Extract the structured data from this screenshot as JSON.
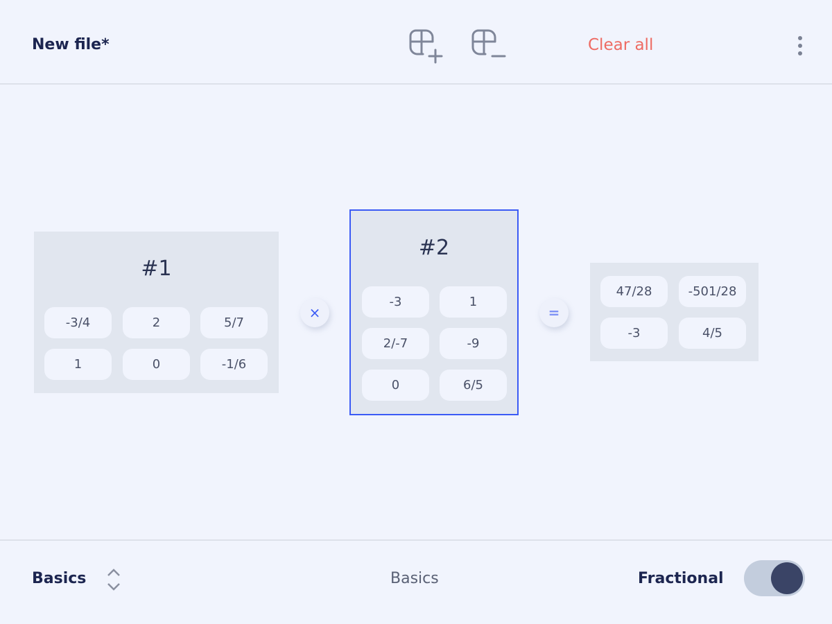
{
  "header": {
    "title": "New file*",
    "add_matrix_icon": "grid-plus-icon",
    "remove_matrix_icon": "grid-minus-icon",
    "clear_all": "Clear all",
    "menu_icon": "more-vertical-icon"
  },
  "matrices": [
    {
      "label": "#1",
      "rows": [
        [
          "-3/4",
          "2",
          "5/7"
        ],
        [
          "1",
          "0",
          "-1/6"
        ]
      ],
      "selected": false
    },
    {
      "label": "#2",
      "rows": [
        [
          "-3",
          "1"
        ],
        [
          "2/-7",
          "-9"
        ],
        [
          "0",
          "6/5"
        ]
      ],
      "selected": true
    }
  ],
  "operator": "×",
  "equals": "=",
  "result": {
    "rows": [
      [
        "47/28",
        "-501/28"
      ],
      [
        "-3",
        "4/5"
      ]
    ]
  },
  "footer": {
    "mode": "Basics",
    "center_label": "Basics",
    "fractional_label": "Fractional",
    "fractional_on": true
  },
  "colors": {
    "accent": "#3b5bf5",
    "clear": "#ee6b63",
    "toggle_knob": "#3a4466"
  }
}
